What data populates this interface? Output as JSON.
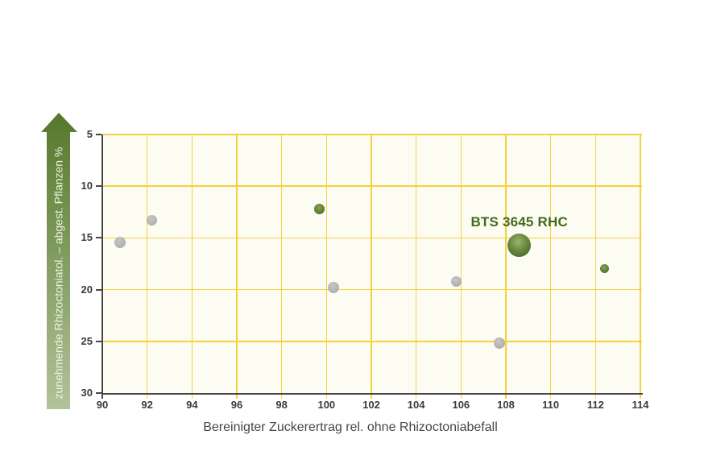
{
  "chart_data": {
    "type": "scatter",
    "title": "",
    "xlabel": "Bereinigter Zuckerertrag rel. ohne Rhizoctoniabefall",
    "ylabel": "zunehmende Rhizoctoniatol. – abgest. Pflanzen %",
    "xlim": [
      90,
      114
    ],
    "ylim": [
      5,
      30
    ],
    "y_axis_inverted": true,
    "grid": true,
    "x_ticks": [
      90,
      92,
      94,
      96,
      98,
      100,
      102,
      104,
      106,
      108,
      110,
      112,
      114
    ],
    "y_ticks": [
      5,
      10,
      15,
      20,
      25,
      30
    ],
    "points": [
      {
        "x": 90.8,
        "y": 15.4,
        "color": "gray",
        "size": "small",
        "r": 7
      },
      {
        "x": 92.2,
        "y": 13.3,
        "color": "gray",
        "size": "small",
        "r": 6.5
      },
      {
        "x": 99.7,
        "y": 12.2,
        "color": "green",
        "size": "small",
        "r": 6.5
      },
      {
        "x": 100.3,
        "y": 19.8,
        "color": "gray",
        "size": "small",
        "r": 7
      },
      {
        "x": 105.8,
        "y": 19.2,
        "color": "gray",
        "size": "small",
        "r": 6.5
      },
      {
        "x": 107.7,
        "y": 25.2,
        "color": "gray",
        "size": "small",
        "r": 7
      },
      {
        "x": 108.6,
        "y": 15.7,
        "color": "green",
        "size": "large",
        "r": 14.5,
        "label": "BTS 3645 RHC"
      },
      {
        "x": 112.4,
        "y": 18.0,
        "color": "green",
        "size": "small",
        "r": 5.5
      }
    ],
    "colors": {
      "page_background": "#ffffff",
      "plot_background": "#fdfcf2",
      "gridline": "#f2d23e",
      "axis": "#45474b",
      "tick_label": "#3b3b3b",
      "axis_title": "#474747",
      "gray_point": "#b5b5b5",
      "green_point": "#5d7d33",
      "highlight_label": "#3f6b1e",
      "arrow_gradient_top": "#55782a",
      "arrow_gradient_bottom": "#b2c29a",
      "arrow_text": "#eef3e3"
    }
  }
}
